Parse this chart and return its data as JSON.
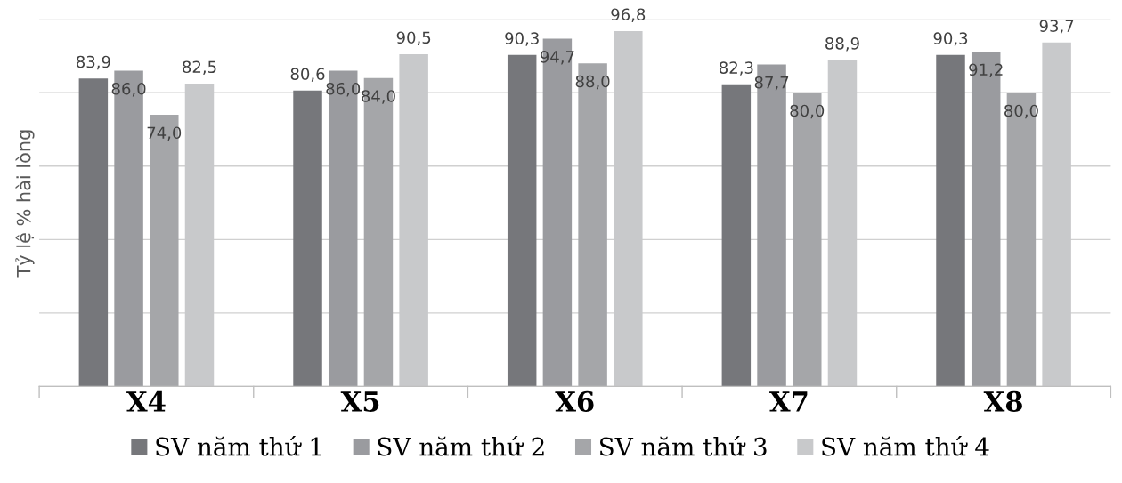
{
  "chart_data": {
    "type": "bar",
    "ylabel": "Tỷ lệ % hài lòng",
    "categories": [
      "X4",
      "X5",
      "X6",
      "X7",
      "X8"
    ],
    "series": [
      {
        "name": "SV năm thứ 1",
        "color": "#76777b",
        "values": [
          83.9,
          80.6,
          90.3,
          82.3,
          90.3
        ],
        "value_labels": [
          "83,9",
          "80,6",
          "90,3",
          "82,3",
          "90,3"
        ]
      },
      {
        "name": "SV năm thứ 2",
        "color": "#9a9b9f",
        "values": [
          86.0,
          86.0,
          94.7,
          87.7,
          91.2
        ],
        "value_labels": [
          "86,0",
          "86,0",
          "94,7",
          "87,7",
          "91,2"
        ]
      },
      {
        "name": "SV năm thứ 3",
        "color": "#a5a6a9",
        "values": [
          74.0,
          84.0,
          88.0,
          80.0,
          80.0
        ],
        "value_labels": [
          "74,0",
          "84,0",
          "88,0",
          "80,0",
          "80,0"
        ]
      },
      {
        "name": "SV năm thứ 4",
        "color": "#c8c9cb",
        "values": [
          82.5,
          90.5,
          96.8,
          88.9,
          93.7
        ],
        "value_labels": [
          "82,5",
          "90,5",
          "96,8",
          "88,9",
          "93,7"
        ]
      }
    ],
    "ylim": [
      0,
      100
    ],
    "yticks": [
      {
        "value": 0,
        "label": null
      },
      {
        "value": 20,
        "label": null
      },
      {
        "value": 40,
        "label": null
      },
      {
        "value": 60,
        "label": null
      },
      {
        "value": 80,
        "label": null
      },
      {
        "value": 100,
        "label": null
      }
    ],
    "tick_labels": "x",
    "grid": "y",
    "legend": "bottom"
  }
}
